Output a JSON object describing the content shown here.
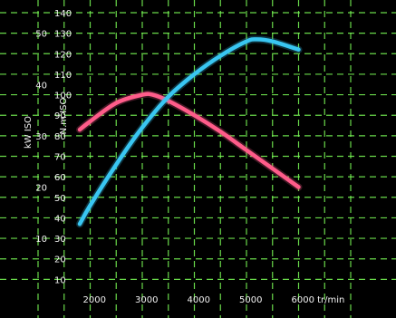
{
  "chart_data": {
    "type": "line",
    "title": "",
    "xlabel": "tr/min",
    "ylabel_left": "kW ISO",
    "ylabel_right": "N.m ISO",
    "xlim": [
      1000,
      7000
    ],
    "ylim": [
      0,
      140
    ],
    "grid": true,
    "legend": "none",
    "x_ticks": [
      "2000",
      "3000",
      "4000",
      "5000",
      "6000 tr/min"
    ],
    "y_ticks_left": [
      "10",
      "20",
      "30",
      "40",
      "50"
    ],
    "y_ticks_right": [
      "10",
      "20",
      "30",
      "40",
      "50",
      "60",
      "70",
      "80",
      "90",
      "100",
      "110",
      "120",
      "130",
      "140"
    ],
    "series": [
      {
        "color": "#ff5c8a",
        "x": [
          1800,
          2000,
          2500,
          3000,
          3200,
          3500,
          4000,
          4500,
          5000,
          5500,
          6000
        ],
        "y": [
          83,
          87,
          96,
          100,
          100,
          97,
          90,
          82,
          73,
          64,
          55
        ]
      },
      {
        "color": "#39c6f2",
        "x": [
          1800,
          2000,
          2500,
          3000,
          3500,
          4000,
          4500,
          5000,
          5200,
          5500,
          6000
        ],
        "y": [
          37,
          46,
          66,
          84,
          99,
          110,
          119,
          126,
          127,
          126,
          122
        ]
      }
    ],
    "colors": {
      "background": "#000000",
      "grid": "#7cff58",
      "text": "#f2f2f2"
    }
  }
}
